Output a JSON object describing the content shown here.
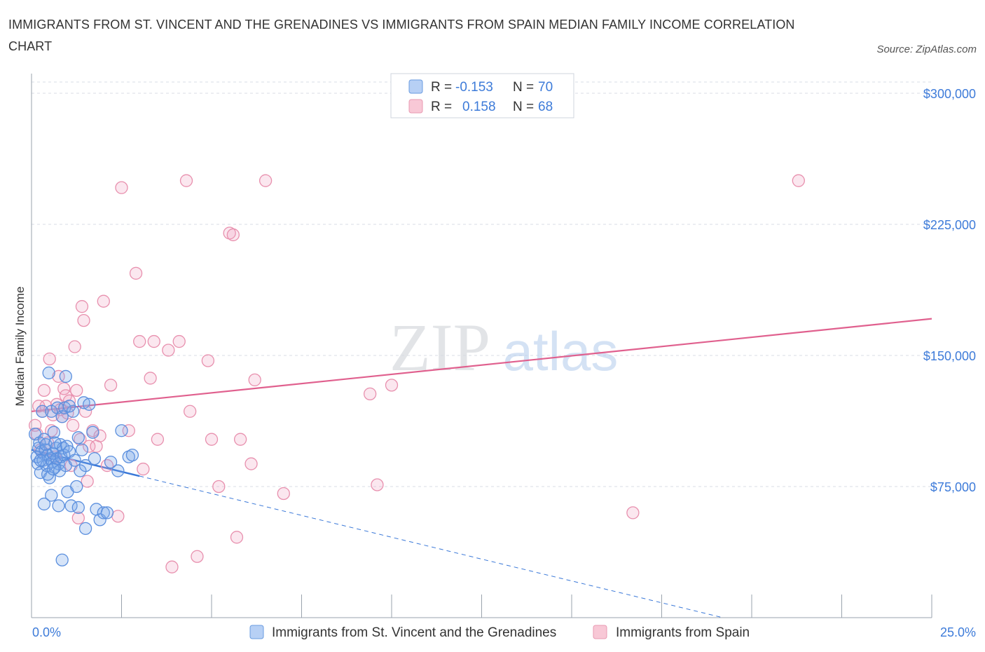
{
  "header": {
    "title": "IMMIGRANTS FROM ST. VINCENT AND THE GRENADINES VS IMMIGRANTS FROM SPAIN MEDIAN FAMILY INCOME CORRELATION CHART",
    "source": "Source: ZipAtlas.com"
  },
  "watermark": {
    "zip": "ZIP",
    "atlas": "atlas"
  },
  "legend": {
    "r_label": "R =",
    "n_label": "N =",
    "series": [
      {
        "r": "-0.153",
        "n": "70",
        "fill": "#b7d0f5",
        "stroke": "#6a9be0"
      },
      {
        "r": "0.158",
        "n": "68",
        "fill": "#f8c8d6",
        "stroke": "#e89ab2"
      }
    ]
  },
  "bottom_legend": [
    "Immigrants from St. Vincent and the Grenadines",
    "Immigrants from Spain"
  ],
  "colors": {
    "blue_point_stroke": "#5b8fde",
    "blue_point_fill": "rgba(120,165,232,0.30)",
    "pink_point_stroke": "#e890ae",
    "pink_point_fill": "rgba(240,160,190,0.25)",
    "blue_line": "#3a78d8",
    "pink_line": "#e0608e",
    "grid": "#d8dde6",
    "tick_text": "#3d7bd9"
  },
  "chart_data": {
    "type": "scatter",
    "title": "IMMIGRANTS FROM ST. VINCENT AND THE GRENADINES VS IMMIGRANTS FROM SPAIN MEDIAN FAMILY INCOME CORRELATION CHART",
    "xlabel": "",
    "ylabel": "Median Family Income",
    "xlim": [
      0,
      25
    ],
    "ylim": [
      0,
      300000
    ],
    "x_tick_labels": [
      "0.0%",
      "25.0%"
    ],
    "y_ticks": [
      75000,
      150000,
      225000,
      300000
    ],
    "y_tick_labels": [
      "$75,000",
      "$150,000",
      "$225,000",
      "$300,000"
    ],
    "grid": true,
    "series": [
      {
        "name": "Immigrants from St. Vincent and the Grenadines",
        "r": -0.153,
        "n": 70,
        "trend": {
          "x0": 0.0,
          "y0": 96000,
          "x1": 3.0,
          "y1": 81000,
          "dash_to_x": 19.2,
          "dash_to_y": 0
        },
        "points": [
          [
            0.1,
            105000
          ],
          [
            0.15,
            92000
          ],
          [
            0.18,
            88000
          ],
          [
            0.2,
            97000
          ],
          [
            0.22,
            100000
          ],
          [
            0.25,
            83000
          ],
          [
            0.28,
            95000
          ],
          [
            0.3,
            118000
          ],
          [
            0.32,
            90000
          ],
          [
            0.35,
            102000
          ],
          [
            0.38,
            96000
          ],
          [
            0.4,
            99000
          ],
          [
            0.42,
            87000
          ],
          [
            0.45,
            93000
          ],
          [
            0.48,
            140000
          ],
          [
            0.5,
            80000
          ],
          [
            0.52,
            91000
          ],
          [
            0.55,
            118000
          ],
          [
            0.58,
            89000
          ],
          [
            0.6,
            94000
          ],
          [
            0.62,
            106000
          ],
          [
            0.65,
            86000
          ],
          [
            0.68,
            97000
          ],
          [
            0.7,
            91000
          ],
          [
            0.72,
            120000
          ],
          [
            0.75,
            88000
          ],
          [
            0.78,
            84000
          ],
          [
            0.8,
            99000
          ],
          [
            0.82,
            92000
          ],
          [
            0.85,
            115000
          ],
          [
            0.88,
            97000
          ],
          [
            0.9,
            93000
          ],
          [
            0.92,
            120000
          ],
          [
            0.95,
            87000
          ],
          [
            0.98,
            98000
          ],
          [
            1.0,
            72000
          ],
          [
            1.05,
            95000
          ],
          [
            1.1,
            64000
          ],
          [
            1.15,
            118000
          ],
          [
            1.2,
            90000
          ],
          [
            1.25,
            75000
          ],
          [
            1.3,
            103000
          ],
          [
            1.35,
            84000
          ],
          [
            1.4,
            96000
          ],
          [
            1.45,
            123000
          ],
          [
            1.5,
            87000
          ],
          [
            1.6,
            122000
          ],
          [
            1.7,
            106000
          ],
          [
            1.75,
            91000
          ],
          [
            1.8,
            62000
          ],
          [
            1.9,
            56000
          ],
          [
            2.0,
            60000
          ],
          [
            2.1,
            60000
          ],
          [
            2.2,
            89000
          ],
          [
            2.4,
            84000
          ],
          [
            2.5,
            107000
          ],
          [
            2.7,
            92000
          ],
          [
            2.8,
            93000
          ],
          [
            0.35,
            65000
          ],
          [
            0.55,
            70000
          ],
          [
            0.75,
            64000
          ],
          [
            0.85,
            33000
          ],
          [
            1.3,
            63000
          ],
          [
            1.5,
            51000
          ],
          [
            0.95,
            138000
          ],
          [
            0.45,
            82000
          ],
          [
            0.65,
            100000
          ],
          [
            1.05,
            121000
          ],
          [
            0.25,
            90000
          ],
          [
            0.6,
            85000
          ]
        ]
      },
      {
        "name": "Immigrants from Spain",
        "r": 0.158,
        "n": 68,
        "trend": {
          "x0": 0.0,
          "y0": 118000,
          "x1": 25.0,
          "y1": 171000
        },
        "points": [
          [
            0.1,
            110000
          ],
          [
            0.15,
            105000
          ],
          [
            0.25,
            96000
          ],
          [
            0.3,
            118000
          ],
          [
            0.35,
            130000
          ],
          [
            0.4,
            121000
          ],
          [
            0.45,
            100000
          ],
          [
            0.5,
            148000
          ],
          [
            0.55,
            107000
          ],
          [
            0.6,
            116000
          ],
          [
            0.65,
            92000
          ],
          [
            0.7,
            122000
          ],
          [
            0.75,
            138000
          ],
          [
            0.8,
            119000
          ],
          [
            0.85,
            115000
          ],
          [
            0.9,
            131000
          ],
          [
            0.95,
            127000
          ],
          [
            1.0,
            117000
          ],
          [
            1.05,
            124000
          ],
          [
            1.1,
            87000
          ],
          [
            1.15,
            110000
          ],
          [
            1.2,
            155000
          ],
          [
            1.25,
            130000
          ],
          [
            1.3,
            57000
          ],
          [
            1.35,
            102000
          ],
          [
            1.4,
            178000
          ],
          [
            1.45,
            170000
          ],
          [
            1.5,
            118000
          ],
          [
            1.55,
            78000
          ],
          [
            1.6,
            98000
          ],
          [
            1.7,
            107000
          ],
          [
            1.8,
            98000
          ],
          [
            1.9,
            104000
          ],
          [
            2.0,
            181000
          ],
          [
            2.1,
            87000
          ],
          [
            2.2,
            133000
          ],
          [
            2.4,
            58000
          ],
          [
            2.5,
            246000
          ],
          [
            2.7,
            107000
          ],
          [
            2.9,
            197000
          ],
          [
            3.0,
            158000
          ],
          [
            3.1,
            85000
          ],
          [
            3.3,
            137000
          ],
          [
            3.4,
            158000
          ],
          [
            3.5,
            102000
          ],
          [
            3.8,
            153000
          ],
          [
            3.9,
            29000
          ],
          [
            4.1,
            158000
          ],
          [
            4.3,
            250000
          ],
          [
            4.4,
            118000
          ],
          [
            4.6,
            35000
          ],
          [
            4.9,
            147000
          ],
          [
            5.0,
            102000
          ],
          [
            5.2,
            75000
          ],
          [
            5.5,
            220000
          ],
          [
            5.6,
            219000
          ],
          [
            5.7,
            46000
          ],
          [
            5.8,
            102000
          ],
          [
            6.1,
            88000
          ],
          [
            6.2,
            136000
          ],
          [
            6.5,
            250000
          ],
          [
            7.0,
            71000
          ],
          [
            9.4,
            128000
          ],
          [
            9.6,
            76000
          ],
          [
            10.0,
            133000
          ],
          [
            16.7,
            60000
          ],
          [
            21.3,
            250000
          ],
          [
            0.2,
            121000
          ]
        ]
      }
    ]
  }
}
